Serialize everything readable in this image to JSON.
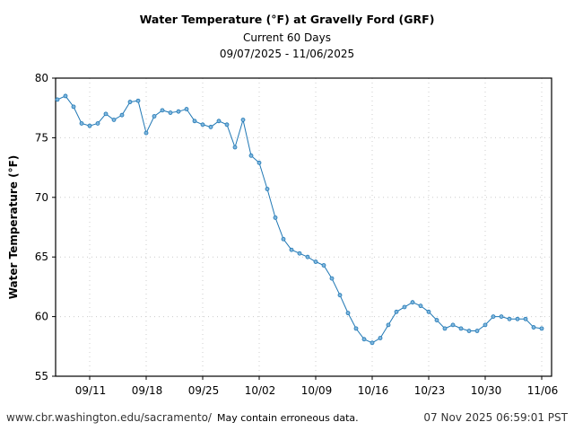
{
  "chart_data": {
    "type": "line",
    "title": "Water Temperature (°F) at Gravelly Ford (GRF)",
    "subtitle": "Current 60 Days",
    "date_range": "09/07/2025 - 11/06/2025",
    "xlabel": "",
    "ylabel": "Water Temperature (°F)",
    "ylim": [
      55,
      80
    ],
    "yticks": [
      55,
      60,
      65,
      70,
      75,
      80
    ],
    "xticks": [
      "09/11",
      "09/18",
      "09/25",
      "10/02",
      "10/09",
      "10/16",
      "10/23",
      "10/30",
      "11/06"
    ],
    "grid": true,
    "color": "#1f77b4",
    "x": [
      "09/07",
      "09/08",
      "09/09",
      "09/10",
      "09/11",
      "09/12",
      "09/13",
      "09/14",
      "09/15",
      "09/16",
      "09/17",
      "09/18",
      "09/19",
      "09/20",
      "09/21",
      "09/22",
      "09/23",
      "09/24",
      "09/25",
      "09/26",
      "09/27",
      "09/28",
      "09/29",
      "09/30",
      "10/01",
      "10/02",
      "10/03",
      "10/04",
      "10/05",
      "10/06",
      "10/07",
      "10/08",
      "10/09",
      "10/10",
      "10/11",
      "10/12",
      "10/13",
      "10/14",
      "10/15",
      "10/16",
      "10/17",
      "10/18",
      "10/19",
      "10/20",
      "10/21",
      "10/22",
      "10/23",
      "10/24",
      "10/25",
      "10/26",
      "10/27",
      "10/28",
      "10/29",
      "10/30",
      "10/31",
      "11/01",
      "11/02",
      "11/03",
      "11/04",
      "11/05",
      "11/06"
    ],
    "values": [
      78.2,
      78.5,
      77.6,
      76.2,
      76.0,
      76.2,
      77.0,
      76.5,
      76.9,
      78.0,
      78.1,
      75.4,
      76.8,
      77.3,
      77.1,
      77.2,
      77.4,
      76.4,
      76.1,
      75.9,
      76.4,
      76.1,
      74.2,
      76.5,
      73.5,
      72.9,
      70.7,
      68.3,
      66.5,
      65.6,
      65.3,
      65.0,
      64.6,
      64.3,
      63.2,
      61.8,
      60.3,
      59.0,
      58.1,
      57.8,
      58.2,
      59.3,
      60.4,
      60.8,
      61.2,
      60.9,
      60.4,
      59.7,
      59.0,
      59.3,
      59.0,
      58.8,
      58.8,
      59.3,
      60.0,
      60.0,
      59.8,
      59.8,
      59.8,
      59.1,
      59.0
    ]
  },
  "footer": {
    "url": "www.cbr.washington.edu/sacramento/",
    "note": "May contain erroneous data.",
    "timestamp": "07 Nov 2025 06:59:01 PST"
  }
}
